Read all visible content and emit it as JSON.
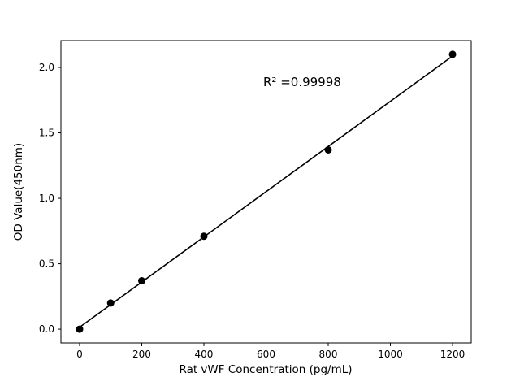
{
  "chart_data": {
    "type": "scatter",
    "title": "",
    "xlabel": "Rat vWF Concentration (pg/mL)",
    "ylabel": "OD Value(450nm)",
    "annotation": "R² =0.99998",
    "annotation_pos": {
      "x": 590,
      "y": 1.9
    },
    "x": [
      0,
      100,
      200,
      400,
      800,
      1200
    ],
    "y": [
      0.0,
      0.2,
      0.37,
      0.71,
      1.37,
      2.1
    ],
    "trendline": {
      "x_start": 0,
      "x_end": 1200,
      "slope": 0.001727,
      "intercept": 0.0146
    },
    "xticks": [
      0,
      200,
      400,
      600,
      800,
      1000,
      1200
    ],
    "yticks": [
      0,
      0.5,
      1,
      1.5,
      2
    ],
    "xlim": [
      -60,
      1260
    ],
    "ylim": [
      -0.105,
      2.205
    ],
    "grid": false,
    "legend": "none",
    "marker_color": "#000000",
    "line_color": "#000000",
    "background_color": "#ffffff"
  }
}
